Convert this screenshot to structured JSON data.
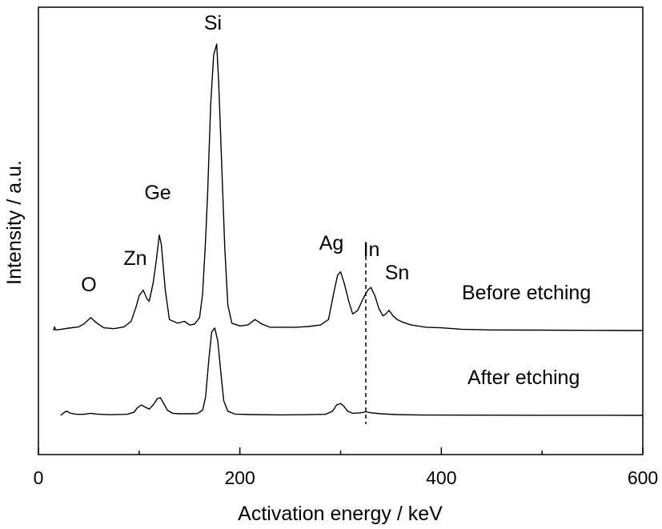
{
  "chart_data": {
    "type": "line",
    "title": "",
    "xlabel": "Activation energy / keV",
    "ylabel": "Intensity / a.u.",
    "xlim": [
      0,
      600
    ],
    "x_major_ticks": [
      0,
      200,
      400,
      600
    ],
    "x_minor_ticks": [
      100,
      300,
      500
    ],
    "y_ticks": "none",
    "grid": false,
    "series": [
      {
        "name": "Before etching",
        "points": [
          [
            15,
            0.0
          ],
          [
            16,
            2.0
          ],
          [
            17,
            0.3
          ],
          [
            22,
            0.6
          ],
          [
            30,
            1.3
          ],
          [
            40,
            2.0
          ],
          [
            45,
            3.5
          ],
          [
            52,
            7.0
          ],
          [
            58,
            4.0
          ],
          [
            65,
            1.5
          ],
          [
            75,
            1.0
          ],
          [
            85,
            2.0
          ],
          [
            92,
            5.0
          ],
          [
            97,
            13.0
          ],
          [
            100,
            19.0
          ],
          [
            104,
            22.0
          ],
          [
            108,
            17.0
          ],
          [
            110,
            16.0
          ],
          [
            114,
            26.0
          ],
          [
            117,
            38.0
          ],
          [
            120,
            52.0
          ],
          [
            122,
            47.0
          ],
          [
            126,
            22.0
          ],
          [
            130,
            6.0
          ],
          [
            138,
            4.0
          ],
          [
            145,
            5.0
          ],
          [
            150,
            3.0
          ],
          [
            155,
            3.5
          ],
          [
            160,
            7.0
          ],
          [
            163,
            20.0
          ],
          [
            166,
            50.0
          ],
          [
            168,
            75.0
          ],
          [
            171,
            123.0
          ],
          [
            174,
            150.0
          ],
          [
            177,
            156.0
          ],
          [
            179,
            135.0
          ],
          [
            182,
            90.0
          ],
          [
            185,
            45.0
          ],
          [
            188,
            14.0
          ],
          [
            192,
            4.0
          ],
          [
            200,
            2.5
          ],
          [
            208,
            3.0
          ],
          [
            215,
            6.0
          ],
          [
            222,
            3.5
          ],
          [
            230,
            1.8
          ],
          [
            242,
            1.8
          ],
          [
            255,
            1.8
          ],
          [
            268,
            2.2
          ],
          [
            280,
            3.0
          ],
          [
            288,
            6.0
          ],
          [
            293,
            20.0
          ],
          [
            297,
            30.0
          ],
          [
            300,
            32.0
          ],
          [
            304,
            25.0
          ],
          [
            308,
            16.0
          ],
          [
            312,
            9.0
          ],
          [
            317,
            11.0
          ],
          [
            322,
            17.0
          ],
          [
            327,
            22.0
          ],
          [
            330,
            23.5
          ],
          [
            334,
            19.0
          ],
          [
            338,
            12.0
          ],
          [
            342,
            8.0
          ],
          [
            345,
            9.0
          ],
          [
            348,
            11.0
          ],
          [
            352,
            8.0
          ],
          [
            356,
            6.0
          ],
          [
            362,
            4.5
          ],
          [
            370,
            3.0
          ],
          [
            385,
            1.8
          ],
          [
            400,
            1.5
          ],
          [
            420,
            0.7
          ],
          [
            450,
            0.3
          ],
          [
            500,
            0.2
          ],
          [
            550,
            0.1
          ],
          [
            600,
            0.0
          ]
        ]
      },
      {
        "name": "After etching",
        "points": [
          [
            22,
            0.0
          ],
          [
            26,
            3.0
          ],
          [
            28,
            4.0
          ],
          [
            32,
            2.0
          ],
          [
            38,
            1.0
          ],
          [
            45,
            1.0
          ],
          [
            52,
            2.0
          ],
          [
            58,
            1.2
          ],
          [
            70,
            0.6
          ],
          [
            88,
            1.0
          ],
          [
            95,
            3.0
          ],
          [
            98,
            7.0
          ],
          [
            102,
            10.0
          ],
          [
            106,
            8.0
          ],
          [
            110,
            6.0
          ],
          [
            114,
            10.0
          ],
          [
            118,
            16.0
          ],
          [
            121,
            17.0
          ],
          [
            124,
            12.0
          ],
          [
            128,
            5.0
          ],
          [
            133,
            2.0
          ],
          [
            140,
            1.5
          ],
          [
            150,
            1.5
          ],
          [
            158,
            1.8
          ],
          [
            163,
            5.0
          ],
          [
            166,
            18.0
          ],
          [
            169,
            52.0
          ],
          [
            172,
            80.0
          ],
          [
            175,
            84.0
          ],
          [
            178,
            72.0
          ],
          [
            181,
            42.0
          ],
          [
            184,
            14.0
          ],
          [
            188,
            4.0
          ],
          [
            195,
            1.2
          ],
          [
            210,
            0.8
          ],
          [
            240,
            0.5
          ],
          [
            270,
            0.7
          ],
          [
            285,
            1.0
          ],
          [
            292,
            4.0
          ],
          [
            296,
            10.0
          ],
          [
            300,
            11.5
          ],
          [
            303,
            9.0
          ],
          [
            307,
            4.0
          ],
          [
            312,
            2.0
          ],
          [
            320,
            2.5
          ],
          [
            325,
            3.5
          ],
          [
            330,
            2.5
          ],
          [
            340,
            1.5
          ],
          [
            355,
            0.8
          ],
          [
            380,
            0.3
          ],
          [
            420,
            0.2
          ],
          [
            500,
            0.1
          ],
          [
            600,
            0.0
          ]
        ]
      }
    ],
    "peak_labels": [
      {
        "text": "O",
        "x": 50
      },
      {
        "text": "Zn",
        "x": 97
      },
      {
        "text": "Ge",
        "x": 120
      },
      {
        "text": "Si",
        "x": 175
      },
      {
        "text": "Ag",
        "x": 293
      },
      {
        "text": "In",
        "x": 330
      },
      {
        "text": "Sn",
        "x": 355
      }
    ],
    "series_labels": [
      "Before etching",
      "After etching"
    ],
    "reference_line": {
      "x": 325,
      "style": "dashed"
    }
  }
}
